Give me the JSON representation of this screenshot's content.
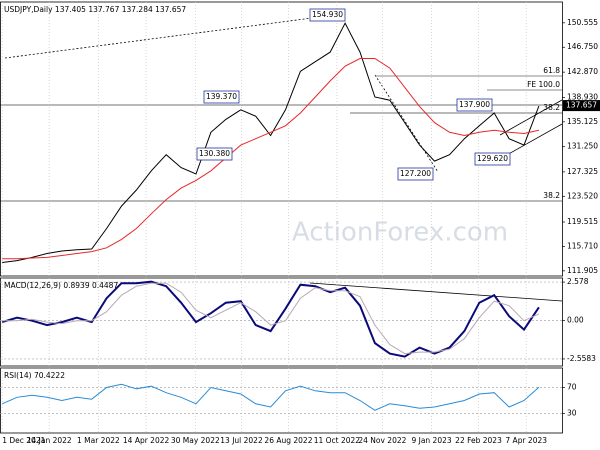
{
  "watermark": "ActionForex.com",
  "chart_data": [
    {
      "type": "line",
      "title": "USDJPY,Daily  137.405 137.767 137.284 137.657",
      "x": [
        0,
        2,
        4,
        6,
        8,
        10,
        12,
        14,
        16,
        18,
        20,
        22,
        24,
        26,
        28,
        30,
        32,
        34,
        36,
        38,
        40,
        42,
        44,
        46,
        48,
        50,
        52,
        54,
        56,
        58,
        60,
        62,
        64,
        66,
        68,
        70,
        72
      ],
      "series": [
        {
          "color": "#000000",
          "values": [
            113.2,
            113.5,
            114.0,
            114.6,
            115.0,
            115.2,
            115.3,
            118.5,
            122.0,
            124.5,
            127.5,
            130.0,
            128.0,
            127.0,
            133.5,
            135.5,
            137.0,
            136.0,
            133.0,
            137.0,
            143.0,
            144.5,
            146.0,
            150.5,
            146.0,
            139.0,
            138.5,
            135.0,
            131.5,
            129.0,
            130.0,
            132.5,
            134.5,
            136.5,
            132.5,
            131.5,
            137.6
          ]
        },
        {
          "color": "#e8272a",
          "values": [
            113.8,
            113.8,
            113.9,
            114.0,
            114.3,
            114.6,
            114.9,
            115.5,
            116.8,
            118.5,
            120.8,
            123.0,
            124.8,
            126.0,
            127.5,
            129.5,
            131.5,
            132.5,
            133.5,
            134.5,
            136.5,
            139.0,
            141.5,
            143.8,
            145.0,
            145.0,
            143.5,
            140.5,
            137.5,
            135.0,
            133.5,
            133.0,
            133.5,
            133.8,
            133.5,
            133.3,
            133.8
          ]
        }
      ],
      "xlim": [
        -0.3,
        75.1
      ],
      "ylim": [
        111.1,
        153.8
      ],
      "yticks": [
        111.905,
        {
          "value": 115.71,
          "label": "115.710"
        },
        119.515,
        {
          "value": 123.52,
          "label": "123.520"
        },
        127.325,
        {
          "value": 131.25,
          "label": "131.250"
        },
        135.125,
        {
          "value": 138.93,
          "label": "138.930"
        },
        {
          "value": 142.87,
          "label": "142.870"
        },
        {
          "value": 146.75,
          "label": "146.750"
        },
        150.555
      ],
      "last_value": 137.657,
      "pivot_labels": [
        "154.930",
        "139.370",
        "130.380",
        "137.900",
        "129.620",
        "127.200"
      ],
      "level_labels": [
        "61.8",
        "FE 100.0",
        "38.2",
        "38.2"
      ],
      "xgrid": true,
      "hgrid": false
    },
    {
      "type": "line",
      "title": "MACD(12,26,9) 0.8939 0.4487",
      "x": [
        0,
        2,
        4,
        6,
        8,
        10,
        12,
        14,
        16,
        18,
        20,
        22,
        24,
        26,
        28,
        30,
        32,
        34,
        36,
        38,
        40,
        42,
        44,
        46,
        48,
        50,
        52,
        54,
        56,
        58,
        60,
        62,
        64,
        66,
        68,
        70,
        72
      ],
      "series": [
        {
          "color": "#0a0a7a",
          "values": [
            -0.1,
            0.2,
            0.0,
            -0.3,
            -0.1,
            0.2,
            -0.1,
            1.5,
            2.5,
            2.5,
            2.6,
            2.3,
            1.2,
            -0.1,
            0.5,
            1.2,
            1.3,
            -0.3,
            -0.7,
            0.8,
            2.4,
            2.3,
            1.9,
            2.2,
            1.0,
            -1.5,
            -2.2,
            -2.4,
            -1.8,
            -2.2,
            -1.8,
            -0.7,
            1.2,
            1.7,
            0.3,
            -0.6,
            0.8939
          ]
        },
        {
          "color": "#b9a9b4",
          "values": [
            0.0,
            0.0,
            0.1,
            -0.1,
            -0.2,
            0.0,
            0.0,
            0.6,
            1.7,
            2.3,
            2.5,
            2.5,
            1.9,
            0.7,
            0.2,
            0.7,
            1.2,
            0.6,
            -0.3,
            0.0,
            1.5,
            2.2,
            2.0,
            2.0,
            1.6,
            -0.3,
            -1.6,
            -2.2,
            -2.1,
            -2.1,
            -1.9,
            -1.2,
            0.2,
            1.3,
            1.0,
            0.0,
            0.4487
          ]
        }
      ],
      "xlim": [
        -0.3,
        75.1
      ],
      "ylim": [
        -3.03,
        2.85
      ],
      "yticks": [
        2.578,
        {
          "value": 0,
          "label": "0.00"
        },
        -2.5583
      ],
      "xgrid": true,
      "hgrid": true
    },
    {
      "type": "line",
      "title": "RSI(14) 70.4222",
      "x": [
        0,
        2,
        4,
        6,
        8,
        10,
        12,
        14,
        16,
        18,
        20,
        22,
        24,
        26,
        28,
        30,
        32,
        34,
        36,
        38,
        40,
        42,
        44,
        46,
        48,
        50,
        52,
        54,
        56,
        58,
        60,
        62,
        64,
        66,
        68,
        70,
        72
      ],
      "series": [
        {
          "color": "#2a8bd6",
          "values": [
            45,
            55,
            58,
            55,
            50,
            55,
            52,
            70,
            75,
            68,
            72,
            62,
            55,
            45,
            70,
            65,
            60,
            45,
            40,
            65,
            72,
            65,
            62,
            62,
            50,
            35,
            45,
            42,
            38,
            40,
            45,
            50,
            60,
            62,
            40,
            50,
            70.4222
          ]
        }
      ],
      "xlim": [
        -0.3,
        75.1
      ],
      "ylim": [
        0,
        100
      ],
      "yticks": [
        70,
        30
      ],
      "xticks": [
        {
          "value": 0,
          "label": "1 Dec 2021"
        },
        {
          "value": 6.3,
          "label": "14 Jan 2022"
        },
        {
          "value": 12.9,
          "label": "1 Mar 2022"
        },
        {
          "value": 19.3,
          "label": "14 Apr 2022"
        },
        {
          "value": 25.9,
          "label": "30 May 2022"
        },
        {
          "value": 32.1,
          "label": "13 Jul 2022"
        },
        {
          "value": 38.4,
          "label": "26 Aug 2022"
        },
        {
          "value": 44.9,
          "label": "11 Oct 2022"
        },
        {
          "value": 51.0,
          "label": "24 Nov 2022"
        },
        {
          "value": 57.6,
          "label": "9 Jan 2023"
        },
        {
          "value": 63.9,
          "label": "22 Feb 2023"
        },
        {
          "value": 70.3,
          "label": "7 Apr 2023"
        }
      ],
      "xgrid": true,
      "hgrid": true
    }
  ]
}
